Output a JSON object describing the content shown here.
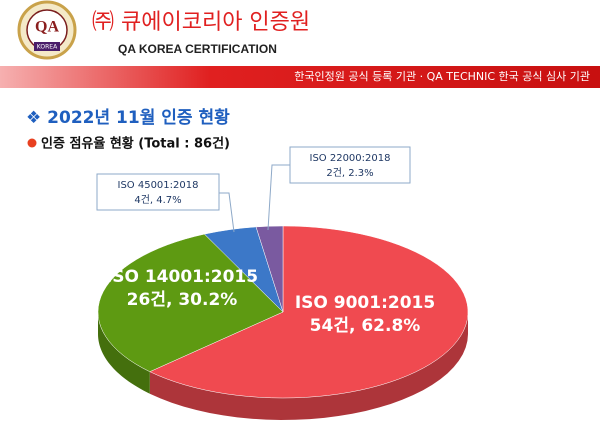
{
  "header": {
    "logo_text": "QA",
    "logo_sub": "KOREA",
    "company": "㈜ 큐에이코리아 인증원",
    "company_en": "QA KOREA CERTIFICATION",
    "banner": "한국인정원 공식 등록 기관 · QA TECHNIC 한국 공식 심사 기관"
  },
  "chart_data": {
    "type": "pie",
    "title": "❖ 2022년 11월 인증 현황",
    "subtitle": "인증 점유율 현황 (Total : 86건)",
    "categories": [
      "ISO 9001:2015",
      "ISO 14001:2015",
      "ISO 45001:2018",
      "ISO 22000:2018"
    ],
    "values": [
      54,
      26,
      4,
      2
    ],
    "value_labels": [
      "54건, 62.8%",
      "26건, 30.2%",
      "4건, 4.7%",
      "2건, 2.3%"
    ],
    "colors": [
      "#f04a50",
      "#5e9a12",
      "#3c78c8",
      "#7a5aa0"
    ]
  }
}
